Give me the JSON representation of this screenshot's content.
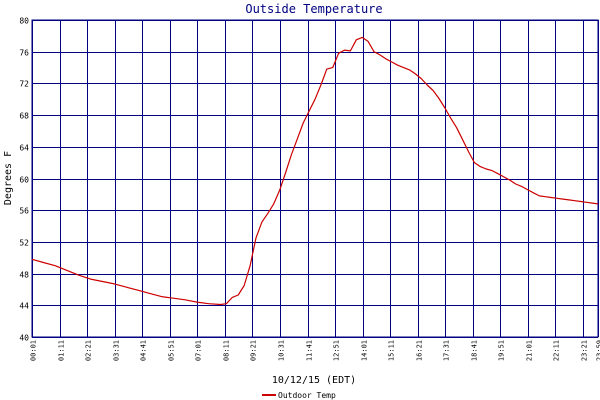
{
  "chart_data": {
    "type": "line",
    "title": "Outside Temperature",
    "xlabel": "10/12/15 (EDT)",
    "ylabel": "Degrees F",
    "ylim": [
      40,
      80
    ],
    "yticks": [
      40,
      44,
      48,
      52,
      56,
      60,
      64,
      68,
      72,
      76,
      80
    ],
    "xlim": [
      "00:01",
      "23:59"
    ],
    "xticks": [
      "00:01",
      "01:11",
      "02:21",
      "03:31",
      "04:41",
      "05:51",
      "07:01",
      "08:11",
      "09:21",
      "10:31",
      "11:41",
      "12:51",
      "14:01",
      "15:11",
      "16:21",
      "17:31",
      "18:41",
      "19:51",
      "21:01",
      "22:11",
      "23:21",
      "23:59"
    ],
    "grid": true,
    "legend": "bottom-left",
    "colors": {
      "grid": "#000080",
      "series": "#cc0000",
      "title": "#000080"
    },
    "series": [
      {
        "name": "Outdoor Temp",
        "x": [
          "00:01",
          "00:30",
          "01:00",
          "01:30",
          "02:00",
          "02:30",
          "03:00",
          "03:30",
          "04:00",
          "04:30",
          "05:00",
          "05:30",
          "06:00",
          "06:30",
          "07:00",
          "07:30",
          "08:00",
          "08:15",
          "08:30",
          "08:45",
          "09:00",
          "09:15",
          "09:30",
          "09:45",
          "10:00",
          "10:15",
          "10:30",
          "10:45",
          "11:00",
          "11:15",
          "11:30",
          "11:45",
          "12:00",
          "12:15",
          "12:30",
          "12:45",
          "13:00",
          "13:15",
          "13:30",
          "13:45",
          "14:00",
          "14:15",
          "14:30",
          "14:45",
          "15:00",
          "15:15",
          "15:30",
          "15:45",
          "16:00",
          "16:15",
          "16:30",
          "16:45",
          "17:00",
          "17:15",
          "17:30",
          "17:45",
          "18:00",
          "18:15",
          "18:30",
          "18:45",
          "19:00",
          "19:15",
          "19:30",
          "19:45",
          "20:00",
          "20:15",
          "20:30",
          "20:45",
          "21:00",
          "21:15",
          "21:30",
          "21:45",
          "22:00",
          "22:15",
          "22:30",
          "22:45",
          "23:00",
          "23:15",
          "23:30",
          "23:45",
          "23:59"
        ],
        "y": [
          49.8,
          49.4,
          49.0,
          48.4,
          47.8,
          47.3,
          47.0,
          46.7,
          46.3,
          45.9,
          45.5,
          45.1,
          44.9,
          44.7,
          44.4,
          44.2,
          44.1,
          44.2,
          45.0,
          45.3,
          46.5,
          49.0,
          52.5,
          54.5,
          55.6,
          56.8,
          58.5,
          60.7,
          63.0,
          65.0,
          67.0,
          68.5,
          70.0,
          71.8,
          73.8,
          74.0,
          75.8,
          76.2,
          76.1,
          77.5,
          77.8,
          77.3,
          76.0,
          75.6,
          75.1,
          74.7,
          74.3,
          74.0,
          73.7,
          73.2,
          72.6,
          71.8,
          71.1,
          70.1,
          68.9,
          67.6,
          66.4,
          64.9,
          63.4,
          62.0,
          61.5,
          61.2,
          61.0,
          60.6,
          60.2,
          59.8,
          59.3,
          59.0,
          58.6,
          58.2,
          57.8,
          57.7,
          57.6,
          57.5,
          57.4,
          57.3,
          57.2,
          57.1,
          57.0,
          56.9,
          56.8
        ]
      }
    ]
  }
}
